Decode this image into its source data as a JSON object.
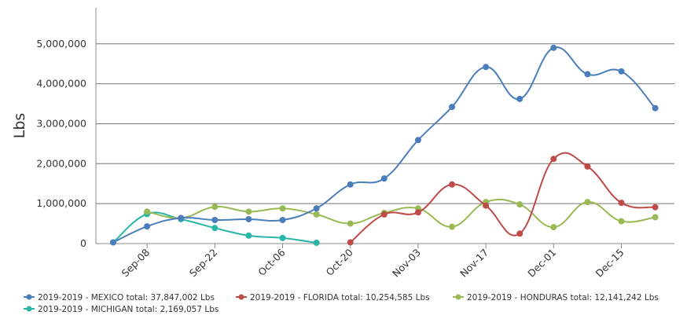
{
  "chart_data": {
    "type": "line",
    "title": "",
    "xlabel": "",
    "ylabel": "Lbs",
    "ylim": [
      0,
      5900000
    ],
    "yticks": [
      0,
      1000000,
      2000000,
      3000000,
      4000000,
      5000000
    ],
    "ytick_labels": [
      "0",
      "1,000,000",
      "2,000,000",
      "3,000,000",
      "4,000,000",
      "5,000,000"
    ],
    "x": [
      "Sep-01",
      "Sep-08",
      "Sep-15",
      "Sep-22",
      "Sep-29",
      "Oct-06",
      "Oct-13",
      "Oct-20",
      "Oct-27",
      "Nov-03",
      "Nov-10",
      "Nov-17",
      "Nov-24",
      "Dec-01",
      "Dec-08",
      "Dec-15",
      "Dec-22"
    ],
    "x_tick_labels": [
      {
        "index": 1,
        "label": "Sep-08"
      },
      {
        "index": 3,
        "label": "Sep-22"
      },
      {
        "index": 5,
        "label": "Oct-06"
      },
      {
        "index": 7,
        "label": "Oct-20"
      },
      {
        "index": 9,
        "label": "Nov-03"
      },
      {
        "index": 11,
        "label": "Nov-17"
      },
      {
        "index": 13,
        "label": "Dec-01"
      },
      {
        "index": 15,
        "label": "Dec-15"
      }
    ],
    "grid": true,
    "legend_position": "bottom",
    "series": [
      {
        "name": "2019-2019 - MEXICO",
        "legend_label": "2019-2019 - MEXICO total: 37,847,002 Lbs",
        "color": "#4a7ebb",
        "values": [
          30000,
          430000,
          640000,
          590000,
          610000,
          590000,
          880000,
          1480000,
          1630000,
          2590000,
          3420000,
          4420000,
          3620000,
          4900000,
          4240000,
          4310000,
          3390000
        ]
      },
      {
        "name": "2019-2019 - FLORIDA",
        "legend_label": "2019-2019 - FLORIDA total: 10,254,585 Lbs",
        "color": "#be4b48",
        "values": [
          null,
          null,
          null,
          null,
          null,
          null,
          null,
          30000,
          730000,
          780000,
          1480000,
          950000,
          250000,
          2120000,
          1930000,
          1020000,
          910000
        ]
      },
      {
        "name": "2019-2019 - HONDURAS",
        "legend_label": "2019-2019 - HONDURAS total: 12,141,242 Lbs",
        "color": "#98b954",
        "values": [
          null,
          800000,
          640000,
          920000,
          800000,
          880000,
          730000,
          500000,
          770000,
          880000,
          420000,
          1040000,
          980000,
          410000,
          1040000,
          560000,
          660000
        ]
      },
      {
        "name": "2019-2019 - MICHIGAN",
        "legend_label": "2019-2019 - MICHIGAN total: 2,169,057 Lbs",
        "color": "#2ab5a7",
        "values": [
          30000,
          740000,
          610000,
          390000,
          200000,
          140000,
          20000,
          null,
          null,
          null,
          null,
          null,
          null,
          null,
          null,
          null,
          null
        ]
      }
    ]
  }
}
